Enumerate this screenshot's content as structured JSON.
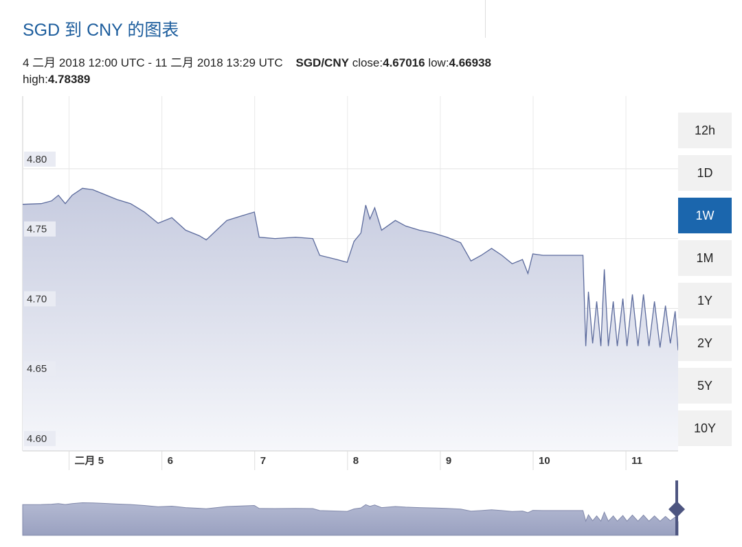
{
  "header": {
    "title": "SGD 到 CNY 的图表"
  },
  "summary": {
    "period": "4 二月 2018 12:00 UTC - 11 二月 2018 13:29 UTC",
    "pair": "SGD/CNY",
    "close_label": "close:",
    "close": 4.67016,
    "low_label": "low:",
    "low": 4.66938,
    "high_label": "high:",
    "high": 4.78389
  },
  "chart_data": {
    "type": "line",
    "color": "#5b6a9c",
    "grid": true,
    "x": [
      4.5,
      4.7,
      4.811,
      4.885,
      4.959,
      5.033,
      5.144,
      5.256,
      5.367,
      5.515,
      5.663,
      5.811,
      5.959,
      6.107,
      6.256,
      6.404,
      6.478,
      6.589,
      6.7,
      6.848,
      6.996,
      7.048,
      7.219,
      7.441,
      7.626,
      7.7,
      7.885,
      7.996,
      8.07,
      8.144,
      8.196,
      8.241,
      8.293,
      8.367,
      8.515,
      8.626,
      8.774,
      8.922,
      9.07,
      9.219,
      9.33,
      9.441,
      9.552,
      9.663,
      9.774,
      9.885,
      9.944,
      9.996,
      10.107,
      10.537,
      10.567,
      10.596,
      10.641,
      10.685,
      10.73,
      10.767,
      10.811,
      10.863,
      10.907,
      10.967,
      11.011,
      11.07,
      11.13,
      11.189,
      11.248,
      11.307,
      11.367,
      11.426,
      11.478,
      11.53,
      11.562
    ],
    "values": [
      4.7745,
      4.775,
      4.777,
      4.781,
      4.775,
      4.781,
      4.786,
      4.785,
      4.782,
      4.778,
      4.775,
      4.769,
      4.761,
      4.765,
      4.756,
      4.752,
      4.749,
      4.756,
      4.763,
      4.766,
      4.769,
      4.751,
      4.75,
      4.751,
      4.75,
      4.738,
      4.735,
      4.733,
      4.748,
      4.754,
      4.774,
      4.764,
      4.772,
      4.756,
      4.763,
      4.759,
      4.756,
      4.754,
      4.751,
      4.747,
      4.734,
      4.738,
      4.743,
      4.738,
      4.732,
      4.735,
      4.725,
      4.739,
      4.738,
      4.738,
      4.673,
      4.712,
      4.675,
      4.705,
      4.673,
      4.728,
      4.673,
      4.705,
      4.673,
      4.707,
      4.673,
      4.71,
      4.673,
      4.71,
      4.673,
      4.705,
      4.672,
      4.702,
      4.675,
      4.698,
      4.67
    ],
    "xlim": [
      4.5,
      11.562
    ],
    "xticks": [
      {
        "value": 5,
        "label": "二月 5"
      },
      6,
      7,
      8,
      9,
      10,
      11
    ],
    "ylim": [
      4.598,
      4.852
    ],
    "yticks": [
      {
        "value": 4.6,
        "label": "4.60"
      },
      {
        "value": 4.65,
        "label": "4.65"
      },
      {
        "value": 4.7,
        "label": "4.70"
      },
      {
        "value": 4.75,
        "label": "4.75"
      },
      {
        "value": 4.8,
        "label": "4.80"
      }
    ]
  },
  "range_buttons": {
    "labels": [
      "12h",
      "1D",
      "1W",
      "1M",
      "1Y",
      "2Y",
      "5Y",
      "10Y"
    ],
    "selected": 2
  }
}
